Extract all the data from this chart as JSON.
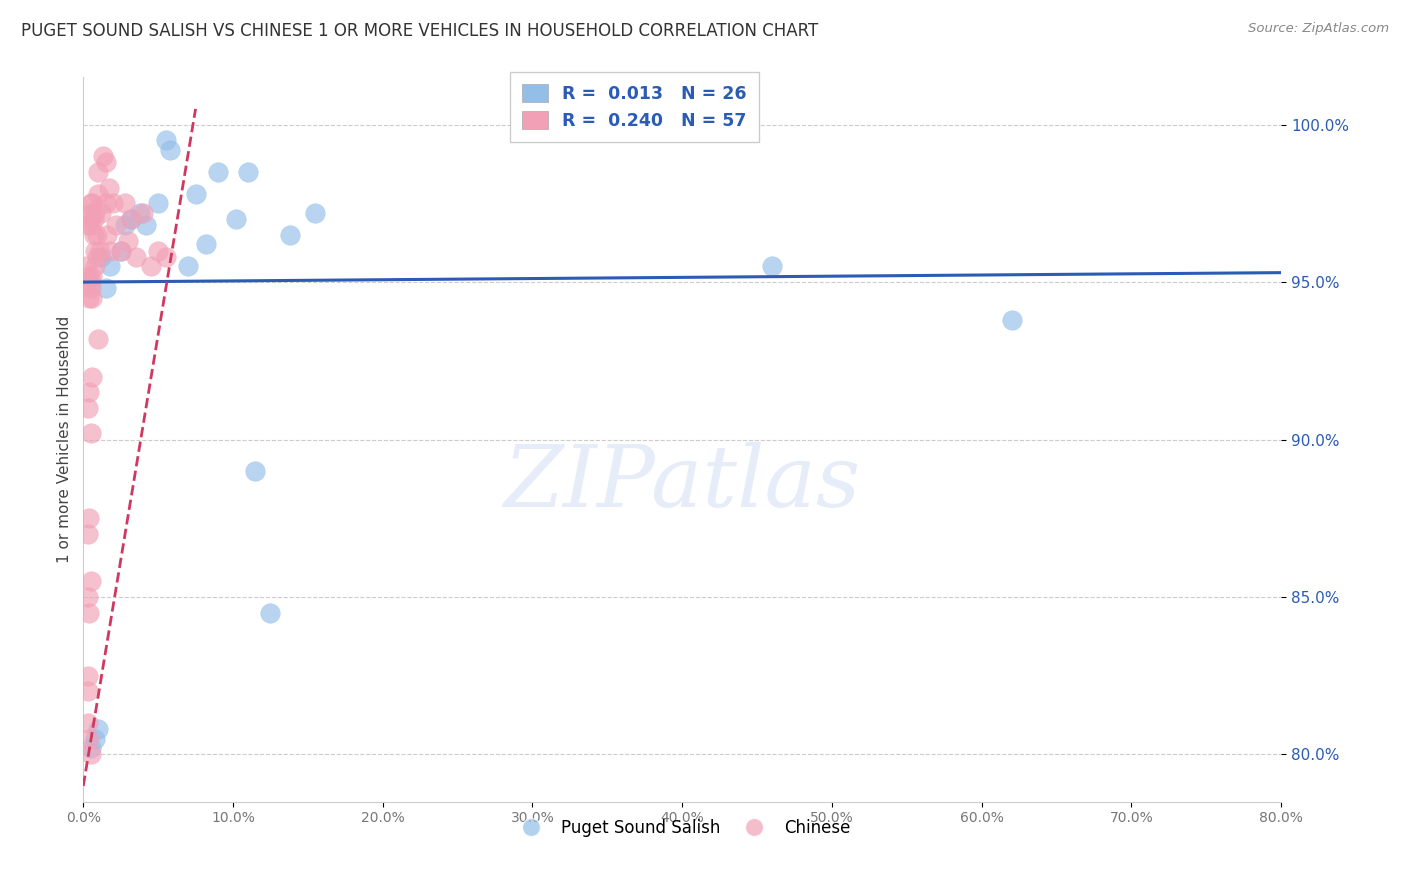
{
  "title": "PUGET SOUND SALISH VS CHINESE 1 OR MORE VEHICLES IN HOUSEHOLD CORRELATION CHART",
  "source": "Source: ZipAtlas.com",
  "ylabel": "1 or more Vehicles in Household",
  "xlim": [
    0.0,
    80.0
  ],
  "ylim": [
    78.5,
    101.5
  ],
  "yticks": [
    80.0,
    85.0,
    90.0,
    95.0,
    100.0
  ],
  "ytick_labels": [
    "80.0%",
    "85.0%",
    "90.0%",
    "95.0%",
    "100.0%"
  ],
  "xticks": [
    0.0,
    10.0,
    20.0,
    30.0,
    40.0,
    50.0,
    60.0,
    70.0,
    80.0
  ],
  "xtick_labels": [
    "0.0%",
    "10.0%",
    "20.0%",
    "30.0%",
    "40.0%",
    "50.0%",
    "60.0%",
    "70.0%",
    "80.0%"
  ],
  "legend_blue_R": "0.013",
  "legend_blue_N": "26",
  "legend_pink_R": "0.240",
  "legend_pink_N": "57",
  "blue_color": "#92BEE8",
  "pink_color": "#F2A0B5",
  "blue_line_color": "#2B5BB5",
  "pink_line_color": "#D03860",
  "blue_line_y0": 95.0,
  "blue_line_y1": 95.3,
  "pink_line_x0": 0.0,
  "pink_line_y0": 79.0,
  "pink_line_x1": 7.5,
  "pink_line_y1": 100.5,
  "watermark_text": "ZIPatlas",
  "blue_scatter_x": [
    0.5,
    0.8,
    1.0,
    1.5,
    1.8,
    2.5,
    3.2,
    3.8,
    4.2,
    5.0,
    5.5,
    5.8,
    7.0,
    7.5,
    8.2,
    9.0,
    10.2,
    11.0,
    12.5,
    13.8,
    15.5,
    1.2,
    2.8,
    46.0,
    62.0,
    11.5
  ],
  "blue_scatter_y": [
    80.2,
    80.5,
    80.8,
    94.8,
    95.5,
    96.0,
    97.0,
    97.2,
    96.8,
    97.5,
    99.5,
    99.2,
    95.5,
    97.8,
    96.2,
    98.5,
    97.0,
    98.5,
    84.5,
    96.5,
    97.2,
    95.8,
    96.8,
    95.5,
    93.8,
    89.0
  ],
  "pink_scatter_x": [
    0.2,
    0.3,
    0.3,
    0.4,
    0.4,
    0.4,
    0.5,
    0.5,
    0.5,
    0.5,
    0.5,
    0.6,
    0.6,
    0.6,
    0.7,
    0.7,
    0.8,
    0.8,
    0.8,
    0.9,
    0.9,
    1.0,
    1.0,
    1.0,
    1.1,
    1.2,
    1.3,
    1.5,
    1.5,
    1.6,
    1.7,
    1.8,
    2.0,
    2.2,
    2.5,
    2.8,
    3.0,
    3.2,
    3.5,
    4.0,
    4.5,
    5.0,
    5.5,
    0.3,
    0.4,
    0.5,
    0.6,
    0.3,
    0.4,
    0.5,
    0.3,
    0.4,
    0.3,
    0.3,
    0.3,
    0.4,
    0.5
  ],
  "pink_scatter_y": [
    95.5,
    95.0,
    96.8,
    97.0,
    95.2,
    94.5,
    97.2,
    96.8,
    97.5,
    95.0,
    94.8,
    97.5,
    95.2,
    94.5,
    97.0,
    96.5,
    97.2,
    96.0,
    95.5,
    96.5,
    95.8,
    97.8,
    98.5,
    93.2,
    96.0,
    97.2,
    99.0,
    98.8,
    97.5,
    96.5,
    98.0,
    96.0,
    97.5,
    96.8,
    96.0,
    97.5,
    96.3,
    97.0,
    95.8,
    97.2,
    95.5,
    96.0,
    95.8,
    91.0,
    91.5,
    90.2,
    92.0,
    87.0,
    87.5,
    85.5,
    85.0,
    84.5,
    82.5,
    82.0,
    81.0,
    80.5,
    80.0
  ]
}
